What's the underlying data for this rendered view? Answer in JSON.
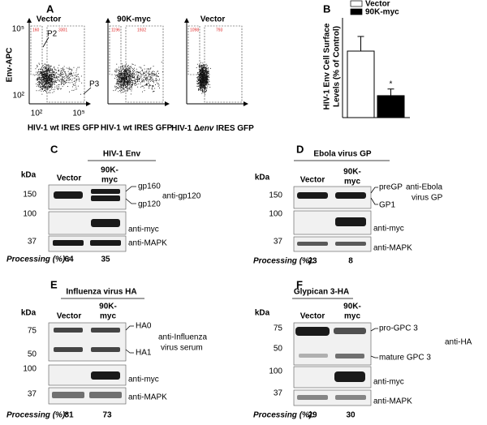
{
  "chart_data": {
    "type": "bar",
    "panel_label": "B",
    "ylabel": [
      "HIV-1 Env Cell Surface",
      "Levels (% of Control)"
    ],
    "categories": [
      null
    ],
    "series": [
      {
        "name": "Vector",
        "color": "#ffffff",
        "values": [
          100
        ],
        "errors": [
          22
        ]
      },
      {
        "name": "90K-myc",
        "color": "#000000",
        "values": [
          33
        ],
        "errors": [
          10
        ]
      }
    ],
    "annotation": "*",
    "ylim": [
      0,
      150
    ]
  },
  "panels": {
    "A": {
      "label": "A",
      "y_axis_label": "Env-APC",
      "y_ticks": [
        "10⁵",
        "10²"
      ],
      "x_ticks": [
        "10²",
        "10⁵"
      ],
      "gates": [
        "P2",
        "P3"
      ],
      "plots": [
        {
          "title": "Vector",
          "counts": [
            "160",
            "3301"
          ],
          "x_label": [
            "HIV-1 wt IRES GFP"
          ]
        },
        {
          "title": "90K-myc",
          "counts": [
            "1196",
            "1932"
          ],
          "x_label": [
            "HIV-1 wt IRES GFP"
          ]
        },
        {
          "title": "Vector",
          "counts": [
            "1098",
            "793"
          ],
          "x_label": [
            "HIV-1 Δ",
            "env",
            " IRES GFP"
          ]
        }
      ]
    },
    "C": {
      "label": "C",
      "title": "HIV-1 Env",
      "kda": "kDa",
      "lanes": [
        "Vector",
        "90K-",
        "myc"
      ],
      "markers": [
        "150",
        "100",
        "37"
      ],
      "bands": [
        "gp160",
        "gp120"
      ],
      "antibodies": [
        "anti-gp120",
        "anti-myc",
        "anti-MAPK"
      ],
      "processing_label": "Processing (%) :",
      "processing": [
        "64",
        "35"
      ]
    },
    "D": {
      "label": "D",
      "title": "Ebola virus GP",
      "kda": "kDa",
      "lanes": [
        "Vector",
        "90K-",
        "myc"
      ],
      "markers": [
        "150",
        "100",
        "37"
      ],
      "bands": [
        "preGP",
        "GP1"
      ],
      "antibodies": [
        "anti-Ebola",
        "virus GP",
        "anti-myc",
        "anti-MAPK"
      ],
      "processing_label": "Processing (%):",
      "processing": [
        "23",
        "8"
      ]
    },
    "E": {
      "label": "E",
      "title": "Influenza virus HA",
      "kda": "kDa",
      "lanes": [
        "Vector",
        "90K-",
        "myc"
      ],
      "markers": [
        "75",
        "50",
        "100",
        "37"
      ],
      "bands": [
        "HA0",
        "HA1"
      ],
      "antibodies": [
        "anti-Influenza",
        "virus serum",
        "anti-myc",
        "anti-MAPK"
      ],
      "processing_label": "Processing (%):",
      "processing": [
        "81",
        "73"
      ]
    },
    "F": {
      "label": "F",
      "title": "Glypican 3-HA",
      "kda": "kDa",
      "lanes": [
        "Vector",
        "90K-",
        "myc"
      ],
      "markers": [
        "75",
        "50",
        "100",
        "37"
      ],
      "bands": [
        "pro-GPC 3",
        "mature GPC 3"
      ],
      "antibodies": [
        "anti-HA",
        "anti-myc",
        "anti-MAPK"
      ],
      "processing_label": "Processing (%):",
      "processing": [
        "29",
        "30"
      ]
    }
  }
}
